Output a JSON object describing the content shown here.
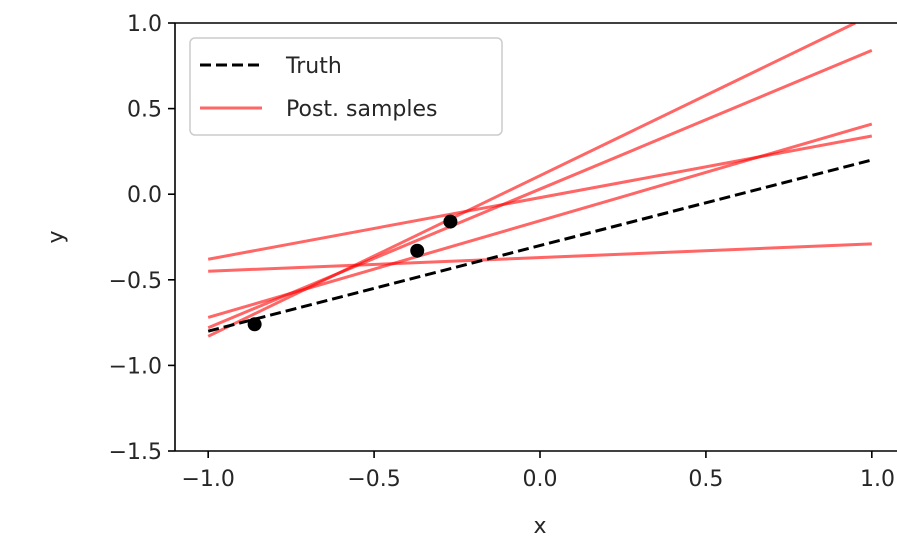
{
  "chart_data": {
    "type": "line",
    "xlabel": "x",
    "ylabel": "y",
    "xlim": [
      -1.1,
      1.1
    ],
    "ylim": [
      -1.5,
      1.0
    ],
    "xticks": [
      -1.0,
      -0.5,
      0.0,
      0.5,
      1.0
    ],
    "xtick_labels": [
      "−1.0",
      "−0.5",
      "0.0",
      "0.5",
      "1.0"
    ],
    "yticks": [
      -1.5,
      -1.0,
      -0.5,
      0.0,
      0.5,
      1.0
    ],
    "ytick_labels": [
      "−1.5",
      "−1.0",
      "−0.5",
      "0.0",
      "0.5",
      "1.0"
    ],
    "grid": false,
    "legend": {
      "placement": "top-left",
      "entries": [
        "Truth",
        "Post. samples"
      ]
    },
    "truth": {
      "name": "Truth",
      "color": "#000000",
      "style": "dashed",
      "x": [
        -1.0,
        1.0
      ],
      "y": [
        -0.8,
        0.2
      ]
    },
    "samples": {
      "name": "Post. samples",
      "color": "#ff0000",
      "opacity": 0.6,
      "lines": [
        {
          "x": [
            -1.0,
            1.0
          ],
          "y": [
            -0.38,
            0.34
          ]
        },
        {
          "x": [
            -1.0,
            1.0
          ],
          "y": [
            -0.45,
            -0.29
          ]
        },
        {
          "x": [
            -1.0,
            1.0
          ],
          "y": [
            -0.72,
            0.41
          ]
        },
        {
          "x": [
            -1.0,
            1.0
          ],
          "y": [
            -0.78,
            0.84
          ]
        },
        {
          "x": [
            -1.0,
            0.95
          ],
          "y": [
            -0.83,
            1.0
          ]
        }
      ]
    },
    "observations": {
      "color": "#000000",
      "x": [
        -0.86,
        -0.37,
        -0.27
      ],
      "y": [
        -0.76,
        -0.33,
        -0.16
      ]
    }
  }
}
